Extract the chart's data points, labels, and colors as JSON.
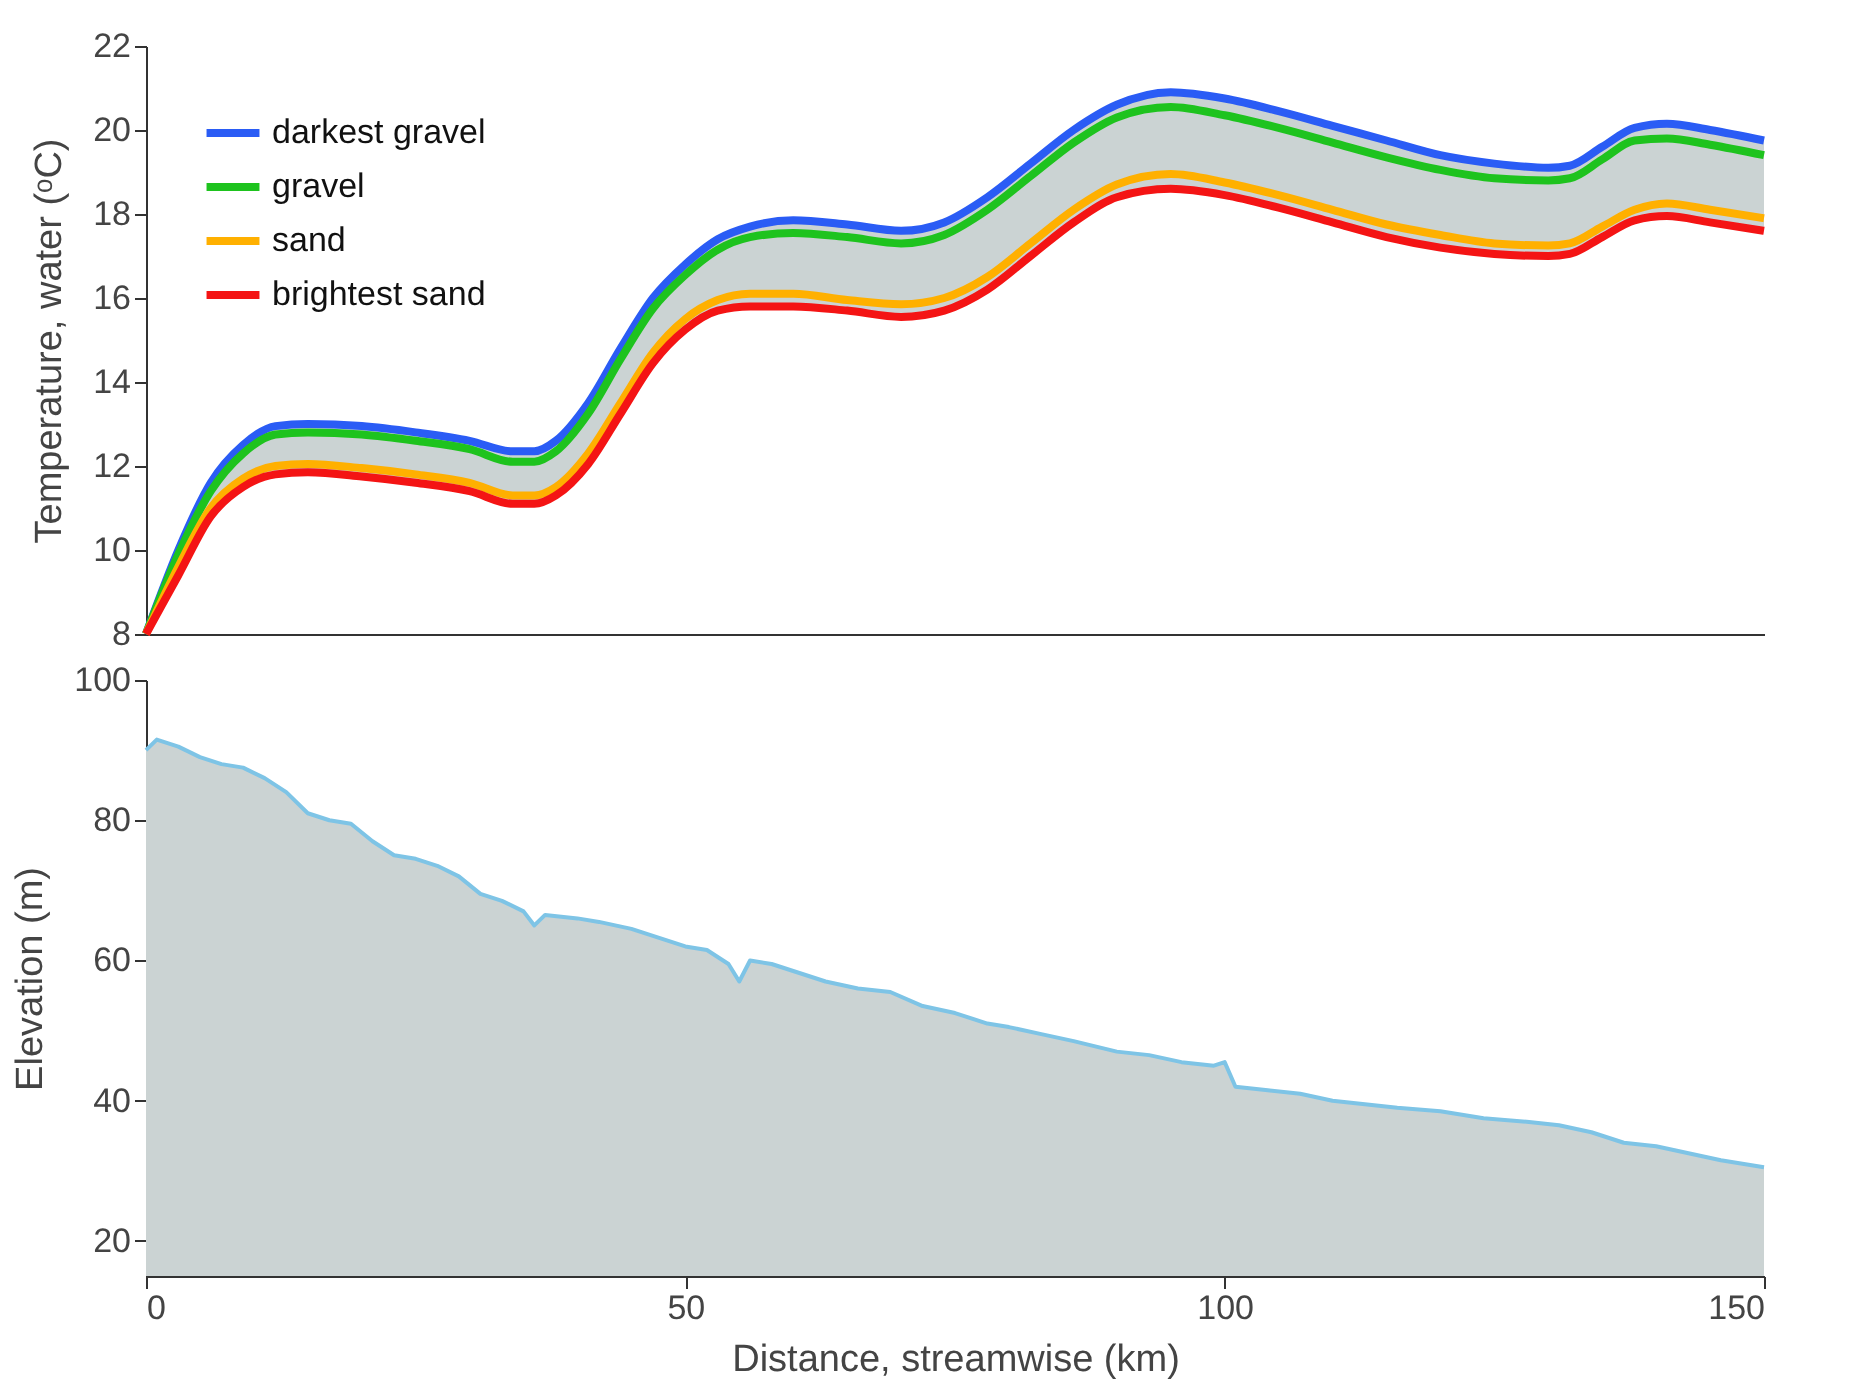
{
  "chart_data": [
    {
      "type": "line",
      "ylabel": "Temperature, water (ᵒC)",
      "xlim": [
        0,
        150
      ],
      "ylim": [
        8,
        22
      ],
      "yticks": [
        8,
        10,
        12,
        14,
        16,
        18,
        20,
        22
      ],
      "tick_labels": "y",
      "legend": "top left",
      "grid": false,
      "marker": "none",
      "line_style": "solid",
      "x": [
        0,
        3,
        6,
        9,
        12,
        15,
        20,
        25,
        30,
        34,
        36,
        38,
        41,
        44,
        47,
        50,
        53,
        56,
        60,
        65,
        70,
        74,
        78,
        82,
        86,
        90,
        95,
        100,
        105,
        110,
        115,
        120,
        125,
        130,
        132,
        135,
        138,
        141,
        145,
        150
      ],
      "series": [
        {
          "name": "darkest gravel",
          "color": "#2a5cf5",
          "values": [
            8,
            10.0,
            11.6,
            12.5,
            12.95,
            13.0,
            12.95,
            12.8,
            12.6,
            12.35,
            12.35,
            12.6,
            13.5,
            14.8,
            16.0,
            16.8,
            17.4,
            17.7,
            17.85,
            17.75,
            17.6,
            17.8,
            18.4,
            19.2,
            20.0,
            20.6,
            20.9,
            20.75,
            20.45,
            20.1,
            19.75,
            19.4,
            19.2,
            19.1,
            19.15,
            19.6,
            20.05,
            20.15,
            20.0,
            19.75
          ],
          "lower": [
            8,
            9.4,
            10.8,
            11.5,
            11.8,
            11.85,
            11.75,
            11.6,
            11.4,
            11.1,
            11.1,
            11.3,
            12.05,
            13.25,
            14.45,
            15.25,
            15.7,
            15.8,
            15.8,
            15.7,
            15.55,
            15.7,
            16.2,
            17.0,
            17.8,
            18.4,
            18.6,
            18.45,
            18.15,
            17.8,
            17.45,
            17.2,
            17.05,
            17.0,
            17.05,
            17.45,
            17.85,
            17.95,
            17.8,
            17.6
          ],
          "upper": [
            8,
            10.0,
            11.6,
            12.5,
            12.95,
            13.0,
            12.95,
            12.8,
            12.6,
            12.35,
            12.35,
            12.6,
            13.5,
            14.8,
            16.0,
            16.8,
            17.4,
            17.7,
            17.85,
            17.75,
            17.6,
            17.8,
            18.4,
            19.2,
            20.0,
            20.6,
            20.9,
            20.75,
            20.45,
            20.1,
            19.75,
            19.4,
            19.2,
            19.1,
            19.15,
            19.6,
            20.05,
            20.15,
            20.0,
            19.75
          ]
        },
        {
          "name": "gravel",
          "color": "#1ec31e",
          "values": [
            8,
            9.9,
            11.4,
            12.3,
            12.75,
            12.8,
            12.75,
            12.6,
            12.4,
            12.1,
            12.1,
            12.35,
            13.25,
            14.55,
            15.75,
            16.55,
            17.15,
            17.45,
            17.55,
            17.45,
            17.3,
            17.5,
            18.1,
            18.9,
            19.7,
            20.3,
            20.55,
            20.35,
            20.05,
            19.7,
            19.35,
            19.05,
            18.85,
            18.8,
            18.85,
            19.3,
            19.75,
            19.8,
            19.65,
            19.4
          ]
        },
        {
          "name": "sand",
          "color": "#ffb000",
          "values": [
            8,
            9.6,
            11.0,
            11.7,
            12.0,
            12.05,
            11.95,
            11.8,
            11.6,
            11.3,
            11.3,
            11.5,
            12.3,
            13.5,
            14.7,
            15.5,
            15.95,
            16.1,
            16.1,
            15.95,
            15.85,
            16.0,
            16.5,
            17.3,
            18.1,
            18.7,
            18.95,
            18.75,
            18.45,
            18.1,
            17.75,
            17.5,
            17.3,
            17.25,
            17.3,
            17.7,
            18.1,
            18.25,
            18.1,
            17.9
          ]
        },
        {
          "name": "brightest sand",
          "color": "#f41414",
          "values": [
            8,
            9.4,
            10.8,
            11.5,
            11.8,
            11.85,
            11.75,
            11.6,
            11.4,
            11.1,
            11.1,
            11.3,
            12.05,
            13.25,
            14.45,
            15.25,
            15.7,
            15.8,
            15.8,
            15.7,
            15.55,
            15.7,
            16.2,
            17.0,
            17.8,
            18.4,
            18.6,
            18.45,
            18.15,
            17.8,
            17.45,
            17.2,
            17.05,
            17.0,
            17.05,
            17.45,
            17.85,
            17.95,
            17.8,
            17.6
          ]
        }
      ]
    },
    {
      "type": "area",
      "xlabel": "Distance, streamwise (km)",
      "ylabel": "Elevation (m)",
      "xlim": [
        0,
        150
      ],
      "ylim": [
        15,
        100
      ],
      "xticks": [
        0,
        50,
        100,
        150
      ],
      "yticks": [
        20,
        40,
        60,
        80,
        100
      ],
      "grid": false,
      "legend": false,
      "x": [
        0,
        1,
        3,
        5,
        7,
        9,
        11,
        13,
        15,
        17,
        19,
        21,
        23,
        25,
        27,
        29,
        31,
        33,
        35,
        36,
        37,
        40,
        42,
        45,
        48,
        50,
        52,
        54,
        55,
        56,
        58,
        60,
        63,
        66,
        69,
        72,
        75,
        78,
        80,
        83,
        86,
        90,
        93,
        96,
        99,
        100,
        101,
        104,
        107,
        110,
        113,
        116,
        120,
        124,
        128,
        131,
        134,
        137,
        140,
        143,
        146,
        148,
        150
      ],
      "series": [
        {
          "color": "#7ec4e6",
          "values": [
            90,
            91.5,
            90.5,
            89,
            88,
            87.5,
            86,
            84,
            81,
            80,
            79.5,
            77,
            75,
            74.5,
            73.5,
            72,
            69.5,
            68.5,
            67,
            65,
            66.5,
            66,
            65.5,
            64.5,
            63,
            62,
            61.5,
            59.5,
            57,
            60,
            59.5,
            58.5,
            57,
            56,
            55.5,
            53.5,
            52.5,
            51,
            50.5,
            49.5,
            48.5,
            47,
            46.5,
            45.5,
            45,
            45.5,
            42,
            41.5,
            41,
            40,
            39.5,
            39,
            38.5,
            37.5,
            37,
            36.5,
            35.5,
            34,
            33.5,
            32.5,
            31.5,
            31,
            30.5
          ]
        }
      ]
    }
  ]
}
